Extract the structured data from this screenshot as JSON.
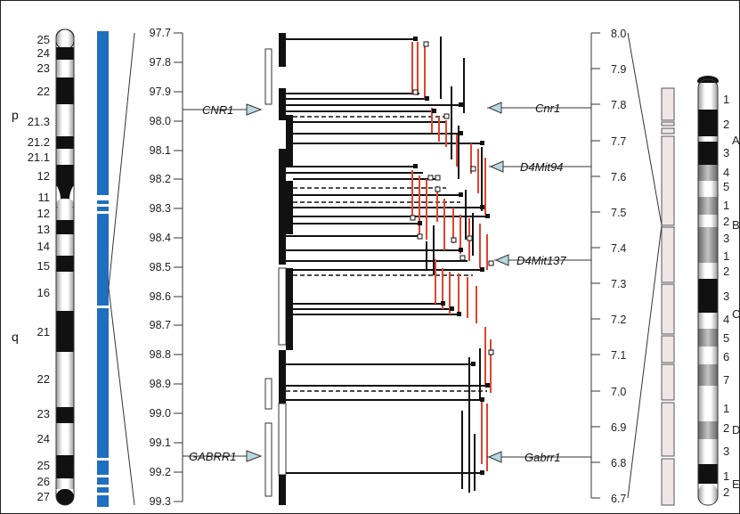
{
  "human_chromosome": {
    "arm_p": "p",
    "arm_q": "q",
    "bands": [
      {
        "label": "25",
        "stain": "white"
      },
      {
        "label": "24",
        "stain": "black"
      },
      {
        "label": "23",
        "stain": "white"
      },
      {
        "label": "22",
        "stain": "black"
      },
      {
        "label": "21.3",
        "stain": "white"
      },
      {
        "label": "21.2",
        "stain": "black"
      },
      {
        "label": "21.1",
        "stain": "white"
      },
      {
        "label": "12",
        "stain": "black"
      },
      {
        "label": "11",
        "stain": "white"
      },
      {
        "label": "12",
        "stain": "white"
      },
      {
        "label": "13",
        "stain": "black"
      },
      {
        "label": "14",
        "stain": "white"
      },
      {
        "label": "15",
        "stain": "black"
      },
      {
        "label": "16",
        "stain": "white"
      },
      {
        "label": "21",
        "stain": "black"
      },
      {
        "label": "22",
        "stain": "white"
      },
      {
        "label": "23",
        "stain": "black"
      },
      {
        "label": "24",
        "stain": "white"
      },
      {
        "label": "25",
        "stain": "black"
      },
      {
        "label": "26",
        "stain": "white"
      },
      {
        "label": "27",
        "stain": "black"
      }
    ],
    "blue_color": "#1f6fc0"
  },
  "human_axis": {
    "ticks": [
      "97.7",
      "97.8",
      "97.9",
      "98.0",
      "98.1",
      "98.2",
      "98.3",
      "98.4",
      "98.5",
      "98.6",
      "98.7",
      "98.8",
      "98.9",
      "99.0",
      "99.1",
      "99.2",
      "99.3"
    ],
    "markers": [
      {
        "label": "CNR1",
        "value": 97.96
      },
      {
        "label": "GABRR1",
        "value": 99.17
      }
    ]
  },
  "mouse_axis": {
    "ticks": [
      "8.0",
      "7.9",
      "7.8",
      "7.7",
      "7.6",
      "7.5",
      "7.4",
      "7.3",
      "7.2",
      "7.1",
      "7.0",
      "6.9",
      "6.8",
      "6.7"
    ],
    "markers": [
      {
        "label": "Cnr1",
        "value": 7.8
      },
      {
        "label": "D4Mit94",
        "value": 7.63
      },
      {
        "label": "D4Mit137",
        "value": 7.37
      },
      {
        "label": "Gabrr1",
        "value": 6.83
      }
    ]
  },
  "mouse_chromosome": {
    "bands": [
      {
        "label": "1",
        "stain": "white"
      },
      {
        "label": "2",
        "stain": "black"
      },
      {
        "label": "A",
        "stain": "white"
      },
      {
        "label": "3",
        "stain": "black"
      },
      {
        "label": "4",
        "stain": "white"
      },
      {
        "label": "5",
        "stain": "grey"
      },
      {
        "label": "1",
        "stain": "grey"
      },
      {
        "label": "B",
        "stain": "white"
      },
      {
        "label": "2",
        "stain": "grey"
      },
      {
        "label": "3",
        "stain": "white"
      },
      {
        "label": "1",
        "stain": "grey"
      },
      {
        "label": "2",
        "stain": "white"
      },
      {
        "label": "3",
        "stain": "black"
      },
      {
        "label": "C",
        "stain": "white"
      },
      {
        "label": "4",
        "stain": "grey"
      },
      {
        "label": "5",
        "stain": "white"
      },
      {
        "label": "6",
        "stain": "grey"
      },
      {
        "label": "7",
        "stain": "white"
      },
      {
        "label": "1",
        "stain": "grey"
      },
      {
        "label": "D",
        "stain": "white"
      },
      {
        "label": "2",
        "stain": "grey"
      },
      {
        "label": "3",
        "stain": "white"
      },
      {
        "label": "1",
        "stain": "black"
      },
      {
        "label": "E",
        "stain": "white"
      },
      {
        "label": "2",
        "stain": "white"
      }
    ]
  },
  "colors": {
    "human_blue": "#1f6fc0",
    "link_red": "#e0442c",
    "marker_fill": "#b8d8e2",
    "contig_fill": "#f1e6e6"
  }
}
